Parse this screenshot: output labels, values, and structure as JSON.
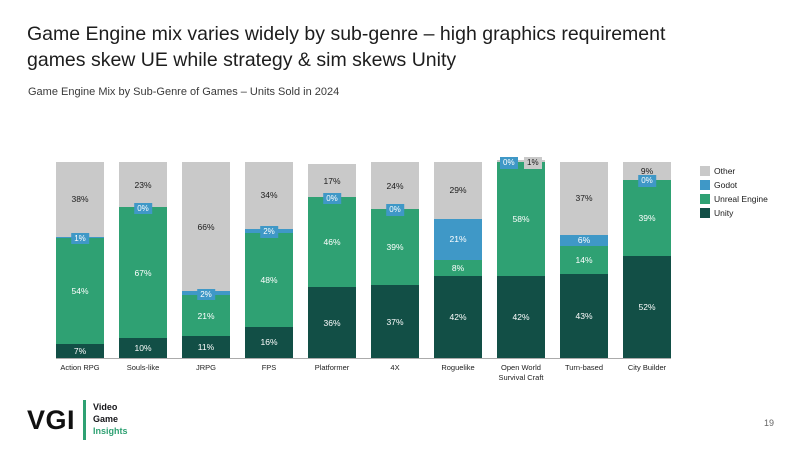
{
  "slide": {
    "title_line1": "Game Engine mix varies widely by sub-genre – high graphics requirement",
    "title_line2": "games skew UE while strategy & sim skews Unity",
    "subtitle": "Game Engine Mix by Sub-Genre of Games – Units Sold in 2024",
    "page_number": "19"
  },
  "logo": {
    "acronym": "VGI",
    "lines": [
      "Video",
      "Game",
      "Insights"
    ]
  },
  "chart_data": {
    "type": "bar",
    "stacked": true,
    "percent": true,
    "title": "Game Engine Mix by Sub-Genre of Games – Units Sold in 2024",
    "categories": [
      "Action RPG",
      "Souls-like",
      "JRPG",
      "FPS",
      "Platformer",
      "4X",
      "Roguelike",
      "Open World Survival Craft",
      "Turn-based",
      "City Builder"
    ],
    "series": [
      {
        "name": "Unity",
        "color": "#124f46",
        "values": [
          7,
          10,
          11,
          16,
          36,
          37,
          42,
          42,
          43,
          52
        ]
      },
      {
        "name": "Unreal Engine",
        "color": "#2fa173",
        "values": [
          54,
          67,
          21,
          48,
          46,
          39,
          8,
          58,
          14,
          39
        ]
      },
      {
        "name": "Godot",
        "color": "#3f98c7",
        "values": [
          1,
          0,
          2,
          2,
          0,
          0,
          21,
          0,
          6,
          0
        ]
      },
      {
        "name": "Other",
        "color": "#c9c9c9",
        "values": [
          38,
          23,
          66,
          34,
          17,
          24,
          29,
          1,
          37,
          9
        ]
      }
    ],
    "legend": [
      "Other",
      "Godot",
      "Unreal Engine",
      "Unity"
    ],
    "legend_position": "right",
    "ylim": [
      0,
      100
    ],
    "value_suffix": "%",
    "grid": false
  }
}
